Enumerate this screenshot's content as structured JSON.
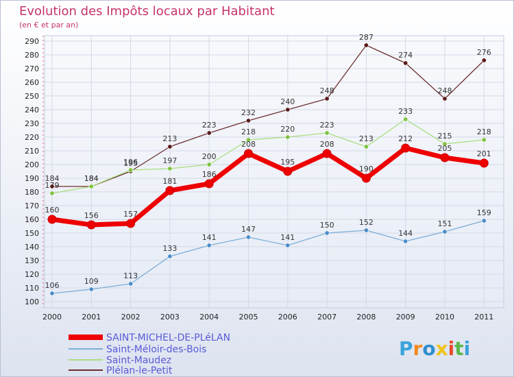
{
  "chart_data": {
    "type": "line",
    "title": "Evolution des Impôts locaux par Habitant",
    "subtitle": "(en € et par an)",
    "categories": [
      "2000",
      "2001",
      "2002",
      "2003",
      "2004",
      "2005",
      "2006",
      "2007",
      "2008",
      "2009",
      "2010",
      "2011"
    ],
    "ylim": [
      100,
      290
    ],
    "yticks": [
      100,
      110,
      120,
      130,
      140,
      150,
      160,
      170,
      180,
      190,
      200,
      210,
      220,
      230,
      240,
      250,
      260,
      270,
      280,
      290
    ],
    "series": [
      {
        "name": "Plélan-le-Petit",
        "values": [
          184,
          184,
          195,
          213,
          223,
          232,
          240,
          248,
          287,
          274,
          248,
          276
        ],
        "color": "#6b2f2f",
        "marker": "#5a1a1a",
        "labels": [
          "184",
          "184",
          "195",
          "213",
          "223",
          "232",
          "240",
          "248",
          "287",
          "274",
          "248",
          "276"
        ]
      },
      {
        "name": "Saint-Maudez",
        "values": [
          179,
          184,
          196,
          197,
          200,
          218,
          220,
          223,
          213,
          233,
          215,
          218
        ],
        "color": "#a9dd7e",
        "marker": "#7fc241",
        "labels": [
          "179",
          "184",
          "196",
          "197",
          "200",
          "218",
          "220",
          "223",
          "213",
          "233",
          "215",
          "218"
        ]
      },
      {
        "name": "Saint-Méloir-des-Bois",
        "values": [
          106,
          109,
          113,
          133,
          141,
          147,
          141,
          150,
          152,
          144,
          151,
          159
        ],
        "color": "#7aaed8",
        "marker": "#4a8cc8",
        "labels": [
          "106",
          "109",
          "113",
          "133",
          "141",
          "147",
          "141",
          "150",
          "152",
          "144",
          "151",
          "159"
        ]
      },
      {
        "name": "SAINT-MICHEL-DE-PLéLAN",
        "values": [
          160,
          156,
          157,
          181,
          186,
          208,
          195,
          208,
          190,
          212,
          205,
          201
        ],
        "color": "#ee0000",
        "marker": "#ee0000",
        "labels": [
          "160",
          "156",
          "157",
          "181",
          "186",
          "208",
          "195",
          "208",
          "190",
          "212",
          "205",
          "201"
        ]
      }
    ],
    "legend": [
      {
        "name": "SAINT-MICHEL-DE-PLéLAN",
        "color": "#ee0000",
        "thick": true
      },
      {
        "name": "Saint-Méloir-des-Bois",
        "color": "#7aaed8",
        "thick": false
      },
      {
        "name": "Saint-Maudez",
        "color": "#a9dd7e",
        "thick": false
      },
      {
        "name": "Plélan-le-Petit",
        "color": "#6b2f2f",
        "thick": false
      }
    ],
    "legend_position": "bottom-left",
    "grid": true
  },
  "logo": {
    "letters": [
      "P",
      "r",
      "o",
      "x",
      "i",
      "t",
      "i"
    ],
    "colors": [
      "#3aa3d9",
      "#f28a1e",
      "#2f8fcf",
      "#f0c419",
      "#e84a2c",
      "#5bb74a",
      "#3aa3d9"
    ]
  }
}
